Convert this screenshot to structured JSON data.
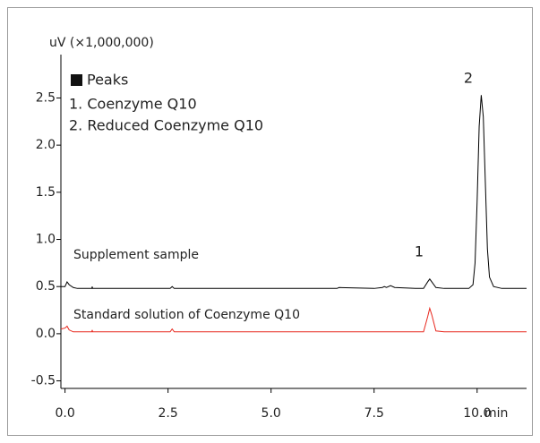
{
  "chart_data": {
    "type": "line",
    "y_label": "uV (×1,000,000)",
    "x_label": "min",
    "legend_title": "Peaks",
    "legend_items": [
      "1. Coenzyme Q10",
      "2. Reduced Coenzyme Q10"
    ],
    "peak_labels": [
      "1",
      "2"
    ],
    "x": [
      -0.1,
      0.0,
      0.05,
      0.1,
      0.2,
      0.3,
      0.65,
      0.66,
      0.67,
      2.55,
      2.6,
      2.65,
      5.3,
      6.6,
      6.65,
      7.5,
      7.7,
      7.75,
      7.8,
      7.9,
      8.0,
      8.5,
      8.7,
      8.8,
      8.85,
      8.9,
      9.0,
      9.2,
      9.8,
      9.9,
      9.95,
      10.0,
      10.05,
      10.1,
      10.15,
      10.2,
      10.25,
      10.3,
      10.4,
      10.6,
      11.2
    ],
    "series": [
      {
        "name": "Supplement sample",
        "color": "#000000",
        "values": [
          0.5,
          0.5,
          0.55,
          0.52,
          0.49,
          0.48,
          0.48,
          0.5,
          0.48,
          0.48,
          0.5,
          0.48,
          0.48,
          0.48,
          0.49,
          0.48,
          0.49,
          0.5,
          0.49,
          0.51,
          0.49,
          0.48,
          0.48,
          0.55,
          0.58,
          0.55,
          0.49,
          0.48,
          0.48,
          0.52,
          0.75,
          1.4,
          2.2,
          2.53,
          2.3,
          1.6,
          0.9,
          0.6,
          0.5,
          0.48,
          0.48
        ]
      },
      {
        "name": "Standard solution of Coenzyme Q10",
        "color": "#e8281e",
        "values": [
          0.05,
          0.06,
          0.08,
          0.04,
          0.02,
          0.02,
          0.02,
          0.04,
          0.02,
          0.02,
          0.05,
          0.02,
          0.02,
          0.02,
          0.02,
          0.02,
          0.02,
          0.02,
          0.02,
          0.02,
          0.02,
          0.02,
          0.02,
          0.18,
          0.27,
          0.2,
          0.03,
          0.02,
          0.02,
          0.02,
          0.02,
          0.02,
          0.02,
          0.02,
          0.02,
          0.02,
          0.02,
          0.02,
          0.02,
          0.02,
          0.02
        ]
      }
    ],
    "xlim": [
      -0.1,
      11.2
    ],
    "ylim": [
      -0.58,
      2.96
    ],
    "xticks": [
      {
        "value": 0,
        "label": "0.0"
      },
      2.5,
      {
        "value": 5,
        "label": "5.0"
      },
      7.5,
      {
        "value": 10,
        "label": "10.0"
      }
    ],
    "yticks": [
      -0.5,
      {
        "value": 0,
        "label": "0.0"
      },
      0.5,
      {
        "value": 1,
        "label": "1.0"
      },
      1.5,
      {
        "value": 2,
        "label": "2.0"
      },
      2.5
    ],
    "grid": false
  }
}
